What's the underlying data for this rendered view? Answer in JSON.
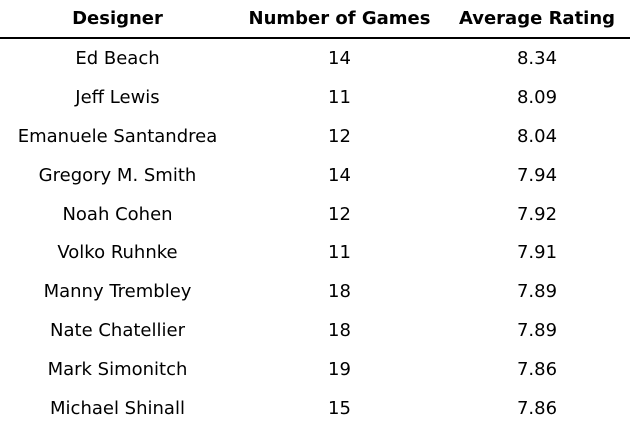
{
  "chart_data": {
    "type": "table",
    "columns": [
      "Designer",
      "Number of Games",
      "Average Rating"
    ],
    "rows": [
      [
        "Ed Beach",
        "14",
        "8.34"
      ],
      [
        "Jeff Lewis",
        "11",
        "8.09"
      ],
      [
        "Emanuele Santandrea",
        "12",
        "8.04"
      ],
      [
        "Gregory M. Smith",
        "14",
        "7.94"
      ],
      [
        "Noah Cohen",
        "12",
        "7.92"
      ],
      [
        "Volko Ruhnke",
        "11",
        "7.91"
      ],
      [
        "Manny Trembley",
        "18",
        "7.89"
      ],
      [
        "Nate Chatellier",
        "18",
        "7.89"
      ],
      [
        "Mark Simonitch",
        "19",
        "7.86"
      ],
      [
        "Michael Shinall",
        "15",
        "7.86"
      ]
    ]
  }
}
